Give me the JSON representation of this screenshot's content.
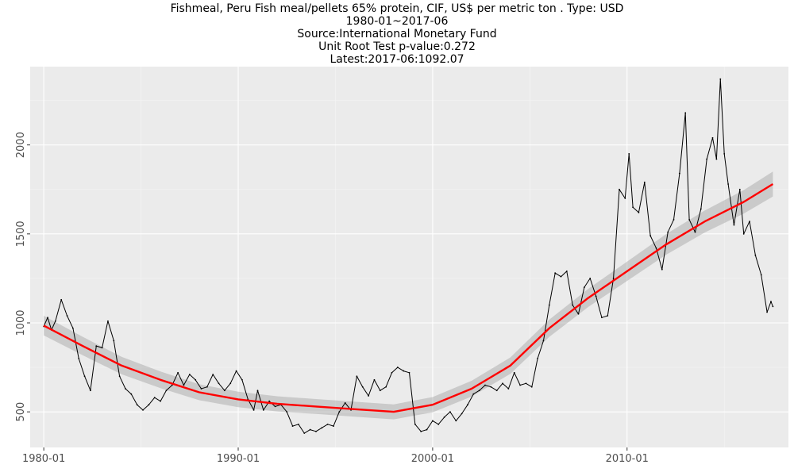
{
  "chart_data": {
    "type": "line",
    "title_lines": [
      "Fishmeal, Peru Fish meal/pellets 65% protein, CIF, US$ per metric ton . Type: USD",
      "1980-01~2017-06",
      "Source:International Monetary Fund",
      "Unit Root Test p-value:0.272",
      "Latest:2017-06:1092.07"
    ],
    "xlabel": "",
    "ylabel": "",
    "x_ticks": [
      "1980-01",
      "1990-01",
      "2000-01",
      "2010-01"
    ],
    "y_ticks": [
      "500",
      "1000",
      "1500",
      "2000"
    ],
    "xlim": [
      1979.3,
      2018.3
    ],
    "ylim": [
      300,
      2440
    ],
    "grid": true,
    "series": [
      {
        "color": "#000000",
        "x": [
          1980.0,
          1980.2,
          1980.4,
          1980.6,
          1980.9,
          1981.2,
          1981.5,
          1981.8,
          1982.1,
          1982.4,
          1982.7,
          1983.0,
          1983.3,
          1983.6,
          1983.9,
          1984.2,
          1984.5,
          1984.8,
          1985.1,
          1985.4,
          1985.7,
          1986.0,
          1986.3,
          1986.6,
          1986.9,
          1987.2,
          1987.5,
          1987.8,
          1988.1,
          1988.4,
          1988.7,
          1989.0,
          1989.3,
          1989.6,
          1989.9,
          1990.2,
          1990.5,
          1990.8,
          1991.0,
          1991.3,
          1991.6,
          1991.9,
          1992.2,
          1992.5,
          1992.8,
          1993.1,
          1993.4,
          1993.7,
          1994.0,
          1994.3,
          1994.6,
          1994.9,
          1995.2,
          1995.5,
          1995.8,
          1996.1,
          1996.4,
          1996.7,
          1997.0,
          1997.3,
          1997.6,
          1997.9,
          1998.2,
          1998.5,
          1998.8,
          1999.1,
          1999.4,
          1999.7,
          2000.0,
          2000.3,
          2000.6,
          2000.9,
          2001.2,
          2001.5,
          2001.8,
          2002.1,
          2002.4,
          2002.7,
          2003.0,
          2003.3,
          2003.6,
          2003.9,
          2004.2,
          2004.5,
          2004.8,
          2005.1,
          2005.4,
          2005.7,
          2006.0,
          2006.3,
          2006.6,
          2006.9,
          2007.2,
          2007.5,
          2007.8,
          2008.1,
          2008.4,
          2008.7,
          2009.0,
          2009.3,
          2009.6,
          2009.9,
          2010.1,
          2010.3,
          2010.6,
          2010.9,
          2011.2,
          2011.5,
          2011.8,
          2012.1,
          2012.4,
          2012.7,
          2013.0,
          2013.2,
          2013.5,
          2013.8,
          2014.1,
          2014.4,
          2014.6,
          2014.8,
          2015.0,
          2015.2,
          2015.5,
          2015.8,
          2016.0,
          2016.3,
          2016.6,
          2016.9,
          2017.2,
          2017.4,
          2017.5
        ],
        "values": [
          980,
          1030,
          960,
          1010,
          1130,
          1040,
          970,
          800,
          700,
          620,
          870,
          860,
          1010,
          900,
          700,
          630,
          600,
          540,
          510,
          540,
          580,
          560,
          620,
          650,
          720,
          650,
          710,
          680,
          630,
          640,
          710,
          660,
          620,
          660,
          730,
          680,
          570,
          510,
          620,
          510,
          560,
          530,
          540,
          500,
          420,
          430,
          380,
          400,
          390,
          410,
          430,
          420,
          500,
          550,
          510,
          700,
          640,
          590,
          680,
          620,
          640,
          720,
          750,
          730,
          720,
          430,
          390,
          400,
          450,
          430,
          470,
          500,
          450,
          490,
          540,
          600,
          620,
          650,
          640,
          620,
          660,
          630,
          720,
          650,
          660,
          640,
          800,
          900,
          1100,
          1280,
          1260,
          1290,
          1100,
          1050,
          1200,
          1250,
          1150,
          1030,
          1040,
          1250,
          1750,
          1700,
          1950,
          1650,
          1620,
          1790,
          1490,
          1420,
          1300,
          1510,
          1580,
          1840,
          2180,
          1580,
          1510,
          1640,
          1920,
          2040,
          1920,
          2370,
          1950,
          1780,
          1550,
          1750,
          1500,
          1570,
          1380,
          1270,
          1060,
          1120,
          1092
        ]
      },
      {
        "color": "#ff0000",
        "x": [
          1980.0,
          1982.0,
          1984.0,
          1986.0,
          1988.0,
          1990.0,
          1992.0,
          1994.0,
          1996.0,
          1998.0,
          2000.0,
          2002.0,
          2004.0,
          2006.0,
          2008.0,
          2010.0,
          2012.0,
          2014.0,
          2016.0,
          2017.5
        ],
        "values": [
          985,
          870,
          760,
          680,
          610,
          570,
          545,
          530,
          515,
          500,
          540,
          630,
          760,
          970,
          1140,
          1290,
          1440,
          1570,
          1680,
          1780
        ]
      }
    ]
  }
}
